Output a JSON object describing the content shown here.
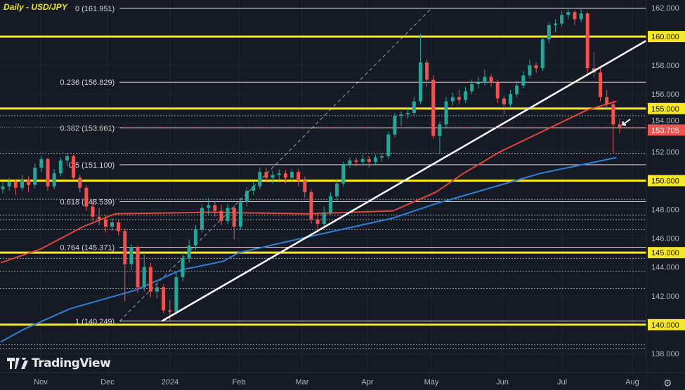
{
  "title": "Daily - USD/JPY",
  "brand": "TradingView",
  "colors": {
    "up": "#26a69a",
    "down": "#ef5350",
    "yellow": "#f5e62a",
    "fib": "#e3cdd0",
    "ma_red": "#e0463a",
    "ma_blue": "#2f7fd6",
    "trend": "#ffffff",
    "last_price": "#ef5350",
    "background": "#161a25"
  },
  "chart_data": {
    "type": "candlestick",
    "symbol": "USD/JPY",
    "timeframe": "Daily",
    "ylim": [
      137.2,
      162.5
    ],
    "y_ticks": [
      "162.000",
      "160.000",
      "158.000",
      "156.000",
      "155.000",
      "154.000",
      "153.705",
      "152.000",
      "150.000",
      "148.000",
      "146.000",
      "145.000",
      "144.000",
      "142.000",
      "140.000",
      "138.000"
    ],
    "x_ticks": [
      {
        "label": "Nov",
        "date": "2023-11-01"
      },
      {
        "label": "Dec",
        "date": "2023-12-01"
      },
      {
        "label": "2024",
        "date": "2024-01-01"
      },
      {
        "label": "Feb",
        "date": "2024-02-01"
      },
      {
        "label": "Mar",
        "date": "2024-03-01"
      },
      {
        "label": "Apr",
        "date": "2024-04-01"
      },
      {
        "label": "May",
        "date": "2024-05-01"
      },
      {
        "label": "Jun",
        "date": "2024-06-01"
      },
      {
        "label": "Jul",
        "date": "2024-07-01"
      },
      {
        "label": "Aug",
        "date": "2024-08-01"
      }
    ],
    "last_price": 153.705,
    "highlighted_levels": [
      160,
      155,
      150,
      145,
      140
    ],
    "fibonacci": [
      {
        "label": "0 (161.951)",
        "price": 161.951
      },
      {
        "label": "0.236 (156.829)",
        "price": 156.829
      },
      {
        "label": "0.382 (153.661)",
        "price": 153.661
      },
      {
        "label": "0.5 (151.100)",
        "price": 151.1
      },
      {
        "label": "0.618 (148.539)",
        "price": 148.539
      },
      {
        "label": "0.764 (145.371)",
        "price": 145.371
      },
      {
        "label": "1 (140.249)",
        "price": 140.249
      }
    ],
    "fib_range": {
      "start": [
        "2023-12-07",
        140.249
      ],
      "end": [
        "2024-05-01",
        161.951
      ]
    },
    "dotted_levels": [
      154.5,
      151.9,
      148.7,
      147.6,
      147.3,
      146.6,
      144.6,
      143.7,
      142.5,
      138.6,
      138.35
    ],
    "trendline": [
      [
        "2023-12-28",
        140.25
      ],
      [
        "2024-08-07",
        159.7
      ]
    ],
    "ma_red": [
      [
        "2023-10-14",
        144.3
      ],
      [
        "2023-11-01",
        145.25
      ],
      [
        "2023-11-20",
        146.8
      ],
      [
        "2023-12-05",
        147.7
      ],
      [
        "2024-01-19",
        147.8
      ],
      [
        "2024-03-04",
        147.7
      ],
      [
        "2024-04-13",
        147.9
      ],
      [
        "2024-05-03",
        149.2
      ],
      [
        "2024-05-15",
        150.5
      ],
      [
        "2024-05-31",
        152.0
      ],
      [
        "2024-06-24",
        153.6
      ],
      [
        "2024-07-12",
        154.9
      ],
      [
        "2024-07-25",
        155.5
      ]
    ],
    "ma_blue": [
      [
        "2023-10-14",
        138.8
      ],
      [
        "2023-10-24",
        139.65
      ],
      [
        "2023-11-14",
        141.1
      ],
      [
        "2023-12-15",
        142.4
      ],
      [
        "2024-01-06",
        143.8
      ],
      [
        "2024-01-25",
        144.4
      ],
      [
        "2024-02-01",
        145.0
      ],
      [
        "2024-03-01",
        146.0
      ],
      [
        "2024-04-13",
        147.4
      ],
      [
        "2024-05-03",
        148.4
      ],
      [
        "2024-05-27",
        149.5
      ],
      [
        "2024-06-20",
        150.5
      ],
      [
        "2024-07-25",
        151.6
      ]
    ],
    "candles": [
      [
        149.4,
        149.9,
        149.1,
        149.6
      ],
      [
        149.6,
        150.2,
        149.3,
        149.9
      ],
      [
        149.9,
        150.1,
        149.0,
        149.5
      ],
      [
        149.5,
        150.4,
        149.3,
        150.1
      ],
      [
        150.1,
        150.3,
        149.2,
        149.7
      ],
      [
        149.7,
        151.2,
        149.5,
        150.9
      ],
      [
        150.9,
        151.7,
        150.6,
        151.5
      ],
      [
        151.5,
        151.6,
        149.3,
        149.6
      ],
      [
        149.6,
        150.8,
        149.4,
        150.5
      ],
      [
        150.5,
        151.6,
        150.3,
        151.4
      ],
      [
        151.4,
        151.9,
        151.0,
        151.7
      ],
      [
        151.7,
        151.8,
        150.0,
        150.2
      ],
      [
        150.2,
        150.4,
        149.2,
        149.5
      ],
      [
        149.5,
        149.7,
        147.9,
        148.2
      ],
      [
        148.2,
        148.6,
        147.2,
        147.5
      ],
      [
        147.5,
        148.1,
        146.9,
        147.3
      ],
      [
        147.3,
        147.6,
        146.4,
        146.8
      ],
      [
        146.8,
        147.4,
        146.5,
        147.1
      ],
      [
        147.1,
        147.3,
        146.2,
        146.5
      ],
      [
        146.5,
        146.7,
        141.6,
        144.2
      ],
      [
        144.2,
        145.6,
        143.8,
        145.4
      ],
      [
        145.4,
        145.5,
        142.2,
        142.6
      ],
      [
        142.6,
        145.0,
        142.3,
        144.0
      ],
      [
        144.0,
        144.3,
        141.9,
        142.3
      ],
      [
        142.3,
        143.1,
        141.8,
        142.6
      ],
      [
        142.6,
        142.8,
        140.8,
        141.0
      ],
      [
        141.0,
        141.7,
        140.25,
        140.9
      ],
      [
        140.9,
        143.6,
        140.7,
        143.3
      ],
      [
        143.3,
        145.0,
        143.0,
        144.6
      ],
      [
        144.6,
        145.9,
        144.3,
        145.5
      ],
      [
        145.5,
        146.9,
        145.2,
        146.6
      ],
      [
        146.6,
        148.4,
        146.4,
        148.1
      ],
      [
        148.1,
        148.8,
        147.6,
        148.3
      ],
      [
        148.3,
        148.6,
        147.5,
        147.9
      ],
      [
        147.9,
        148.3,
        146.9,
        147.2
      ],
      [
        147.2,
        148.4,
        147.0,
        148.1
      ],
      [
        148.1,
        148.3,
        145.9,
        146.8
      ],
      [
        146.8,
        148.8,
        146.6,
        148.5
      ],
      [
        148.5,
        149.6,
        148.2,
        149.3
      ],
      [
        149.3,
        149.9,
        149.0,
        149.6
      ],
      [
        149.6,
        150.9,
        149.4,
        150.6
      ],
      [
        150.6,
        150.9,
        149.9,
        150.2
      ],
      [
        150.2,
        150.7,
        149.8,
        150.4
      ],
      [
        150.4,
        150.8,
        150.0,
        150.5
      ],
      [
        150.5,
        150.7,
        149.8,
        150.2
      ],
      [
        150.2,
        150.8,
        149.9,
        150.6
      ],
      [
        150.6,
        150.8,
        149.6,
        150.0
      ],
      [
        150.0,
        150.3,
        148.8,
        149.2
      ],
      [
        149.2,
        149.4,
        147.0,
        147.3
      ],
      [
        147.3,
        147.8,
        146.5,
        147.0
      ],
      [
        147.0,
        148.2,
        146.8,
        147.8
      ],
      [
        147.8,
        149.2,
        147.6,
        148.9
      ],
      [
        148.9,
        150.1,
        148.6,
        149.8
      ],
      [
        149.8,
        151.3,
        149.6,
        151.1
      ],
      [
        151.1,
        151.6,
        150.9,
        151.4
      ],
      [
        151.4,
        151.6,
        151.0,
        151.3
      ],
      [
        151.3,
        151.8,
        151.1,
        151.5
      ],
      [
        151.5,
        151.7,
        150.9,
        151.3
      ],
      [
        151.3,
        151.8,
        151.1,
        151.6
      ],
      [
        151.6,
        151.9,
        151.3,
        151.7
      ],
      [
        151.7,
        153.4,
        151.5,
        153.2
      ],
      [
        153.2,
        154.7,
        153.0,
        154.5
      ],
      [
        154.5,
        154.8,
        153.8,
        154.6
      ],
      [
        154.6,
        155.0,
        154.3,
        154.7
      ],
      [
        154.7,
        155.8,
        154.5,
        155.5
      ],
      [
        155.5,
        160.2,
        155.3,
        158.2
      ],
      [
        158.2,
        158.4,
        156.5,
        157.0
      ],
      [
        157.0,
        157.3,
        152.9,
        153.1
      ],
      [
        153.1,
        154.1,
        151.9,
        153.9
      ],
      [
        153.9,
        155.8,
        153.7,
        155.5
      ],
      [
        155.5,
        156.1,
        155.2,
        155.8
      ],
      [
        155.8,
        156.3,
        155.3,
        155.6
      ],
      [
        155.6,
        156.5,
        155.4,
        156.2
      ],
      [
        156.2,
        157.0,
        156.0,
        156.7
      ],
      [
        156.7,
        157.2,
        156.4,
        156.8
      ],
      [
        156.8,
        157.7,
        156.6,
        157.2
      ],
      [
        157.2,
        157.4,
        156.5,
        156.8
      ],
      [
        156.8,
        157.0,
        155.4,
        155.7
      ],
      [
        155.7,
        155.9,
        154.6,
        155.3
      ],
      [
        155.3,
        156.3,
        155.1,
        156.0
      ],
      [
        156.0,
        156.9,
        155.8,
        156.6
      ],
      [
        156.6,
        157.6,
        156.4,
        157.3
      ],
      [
        157.3,
        158.4,
        157.1,
        158.0
      ],
      [
        158.0,
        158.2,
        157.5,
        157.8
      ],
      [
        157.8,
        160.0,
        157.6,
        159.8
      ],
      [
        159.8,
        161.0,
        159.5,
        160.8
      ],
      [
        160.8,
        161.2,
        160.3,
        160.9
      ],
      [
        160.9,
        161.8,
        160.7,
        161.5
      ],
      [
        161.5,
        161.95,
        161.2,
        161.7
      ],
      [
        161.7,
        161.8,
        160.8,
        161.2
      ],
      [
        161.2,
        161.9,
        161.0,
        161.6
      ],
      [
        161.6,
        161.7,
        157.4,
        157.8
      ],
      [
        157.8,
        158.9,
        157.2,
        157.5
      ],
      [
        157.5,
        157.8,
        155.5,
        155.8
      ],
      [
        155.8,
        156.3,
        155.0,
        155.3
      ],
      [
        155.3,
        155.6,
        151.9,
        153.9
      ],
      [
        153.9,
        154.3,
        153.3,
        153.7
      ]
    ]
  }
}
